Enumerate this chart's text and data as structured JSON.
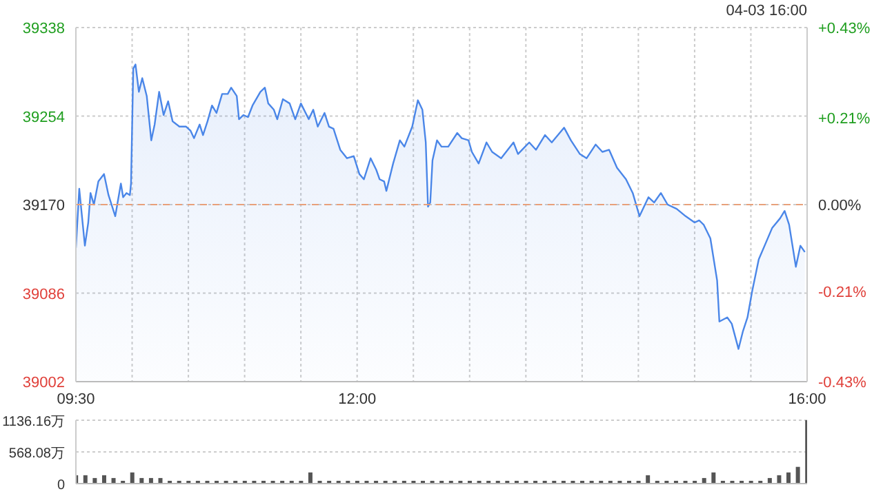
{
  "chart_data": [
    {
      "type": "area",
      "annotations": [
        "04-03 16:00"
      ],
      "x": [
        9.5,
        9.53,
        9.58,
        9.61,
        9.63,
        9.66,
        9.7,
        9.75,
        9.79,
        9.85,
        9.9,
        9.92,
        9.95,
        9.98,
        9.99,
        10.01,
        10.03,
        10.06,
        10.09,
        10.13,
        10.17,
        10.2,
        10.24,
        10.28,
        10.32,
        10.36,
        10.42,
        10.48,
        10.52,
        10.55,
        10.6,
        10.63,
        10.67,
        10.71,
        10.75,
        10.8,
        10.85,
        10.88,
        10.93,
        10.95,
        10.99,
        11.03,
        11.07,
        11.14,
        11.18,
        11.21,
        11.26,
        11.29,
        11.34,
        11.4,
        11.45,
        11.5,
        11.57,
        11.61,
        11.65,
        11.71,
        11.75,
        11.79,
        11.85,
        11.91,
        11.97,
        12.02,
        12.06,
        12.12,
        12.17,
        12.2,
        12.24,
        12.26,
        12.32,
        12.38,
        12.42,
        12.49,
        12.54,
        12.58,
        12.61,
        12.63,
        12.65,
        12.67,
        12.71,
        12.75,
        12.81,
        12.89,
        12.93,
        12.99,
        13.02,
        13.08,
        13.15,
        13.2,
        13.28,
        13.39,
        13.43,
        13.53,
        13.59,
        13.67,
        13.73,
        13.84,
        13.9,
        13.98,
        14.04,
        14.12,
        14.18,
        14.24,
        14.31,
        14.39,
        14.45,
        14.51,
        14.59,
        14.64,
        14.7,
        14.76,
        14.84,
        14.92,
        15.0,
        15.04,
        15.08,
        15.14,
        15.2,
        15.22,
        15.29,
        15.33,
        15.39,
        15.43,
        15.47,
        15.51,
        15.57,
        15.63,
        15.69,
        15.76,
        15.8,
        15.84,
        15.9,
        15.94,
        15.98
      ],
      "series": [
        {
          "color": "#4a86e8",
          "values": [
            39129,
            39185,
            39131,
            39153,
            39181,
            39170,
            39192,
            39199,
            39179,
            39159,
            39190,
            39177,
            39181,
            39179,
            39190,
            39299,
            39303,
            39277,
            39290,
            39273,
            39231,
            39246,
            39277,
            39255,
            39268,
            39249,
            39244,
            39244,
            39240,
            39233,
            39246,
            39236,
            39249,
            39264,
            39257,
            39275,
            39275,
            39281,
            39273,
            39251,
            39255,
            39253,
            39264,
            39277,
            39281,
            39266,
            39260,
            39251,
            39270,
            39266,
            39251,
            39266,
            39251,
            39260,
            39244,
            39257,
            39244,
            39242,
            39222,
            39214,
            39216,
            39199,
            39194,
            39214,
            39203,
            39194,
            39192,
            39183,
            39209,
            39231,
            39225,
            39244,
            39269,
            39260,
            39229,
            39168,
            39172,
            39212,
            39231,
            39225,
            39225,
            39238,
            39233,
            39231,
            39220,
            39209,
            39229,
            39220,
            39214,
            39229,
            39218,
            39229,
            39222,
            39236,
            39229,
            39243,
            39231,
            39218,
            39214,
            39227,
            39220,
            39222,
            39205,
            39194,
            39181,
            39159,
            39177,
            39172,
            39181,
            39170,
            39166,
            39159,
            39153,
            39155,
            39151,
            39138,
            39098,
            39059,
            39063,
            39057,
            39033,
            39050,
            39063,
            39087,
            39118,
            39133,
            39148,
            39157,
            39164,
            39151,
            39111,
            39131,
            39125
          ]
        }
      ],
      "xlim": [
        9.5,
        16
      ],
      "xticks": [
        {
          "value": 9.5,
          "label": "09:30"
        },
        {
          "value": 10,
          "label": null
        },
        {
          "value": 10.5,
          "label": null
        },
        {
          "value": 11,
          "label": null
        },
        {
          "value": 11.5,
          "label": null
        },
        {
          "value": 12,
          "label": "12:00"
        },
        {
          "value": 12.5,
          "label": null
        },
        {
          "value": 13,
          "label": null
        },
        {
          "value": 13.5,
          "label": null
        },
        {
          "value": 14,
          "label": null
        },
        {
          "value": 14.5,
          "label": null
        },
        {
          "value": 15,
          "label": null
        },
        {
          "value": 15.5,
          "label": null
        },
        {
          "value": 16,
          "label": "16:00"
        }
      ],
      "ylim": [
        39002,
        39338
      ],
      "yticks": [
        39002,
        39086,
        39170,
        39254,
        39338
      ],
      "y2lim": [
        -0.43,
        0.43
      ],
      "y2ticks": [
        {
          "value": -0.43,
          "label": "-0.43%"
        },
        {
          "value": -0.21,
          "label": "-0.21%"
        },
        {
          "value": 0,
          "label": "0.00%"
        },
        {
          "value": 0.21,
          "label": "+0.21%"
        },
        {
          "value": 0.43,
          "label": "+0.43%"
        }
      ],
      "ref_lines": [
        {
          "axis": "y",
          "value": 39170,
          "color": "#e8a07a",
          "line_style": "dashed"
        }
      ],
      "grid": true
    },
    {
      "type": "bar",
      "tick_labels": "y",
      "x": [
        9.5,
        9.5833,
        9.6667,
        9.75,
        9.8333,
        9.9167,
        10,
        10.0833,
        10.1667,
        10.25,
        10.3333,
        10.4167,
        10.5,
        10.5833,
        10.6667,
        10.75,
        10.8333,
        10.9167,
        11,
        11.0833,
        11.1667,
        11.25,
        11.3333,
        11.4167,
        11.5,
        11.5833,
        11.6667,
        11.75,
        11.8333,
        11.9167,
        12,
        12.0833,
        12.1667,
        12.25,
        12.3333,
        12.4167,
        12.5,
        12.5833,
        12.6667,
        12.75,
        12.8333,
        12.9167,
        13,
        13.0833,
        13.1667,
        13.25,
        13.3333,
        13.4167,
        13.5,
        13.5833,
        13.6667,
        13.75,
        13.8333,
        13.9167,
        14,
        14.0833,
        14.1667,
        14.25,
        14.3333,
        14.4167,
        14.5,
        14.5833,
        14.6667,
        14.75,
        14.8333,
        14.9167,
        15,
        15.0833,
        15.1667,
        15.25,
        15.3333,
        15.4167,
        15.5,
        15.5833,
        15.6667,
        15.75,
        15.8333,
        15.9167,
        16
      ],
      "series": [
        {
          "color": "#555555",
          "values": [
            150,
            150,
            100,
            150,
            100,
            50,
            200,
            100,
            100,
            100,
            50,
            50,
            50,
            50,
            50,
            50,
            50,
            50,
            50,
            50,
            50,
            50,
            50,
            50,
            50,
            200,
            50,
            50,
            50,
            50,
            50,
            50,
            50,
            50,
            50,
            50,
            50,
            50,
            50,
            50,
            50,
            50,
            50,
            50,
            50,
            50,
            50,
            50,
            50,
            50,
            50,
            50,
            50,
            50,
            50,
            50,
            50,
            50,
            50,
            50,
            50,
            150,
            50,
            50,
            50,
            50,
            50,
            100,
            200,
            50,
            50,
            50,
            50,
            50,
            100,
            150,
            200,
            300,
            1136.16
          ]
        }
      ],
      "xlim": [
        9.5,
        16
      ],
      "ylim": [
        0,
        1136.16
      ],
      "yticks": [
        0,
        {
          "value": 568.08,
          "label": "568.08万"
        },
        {
          "value": 1136.16,
          "label": "1136.16万"
        }
      ],
      "grid": "y"
    }
  ]
}
